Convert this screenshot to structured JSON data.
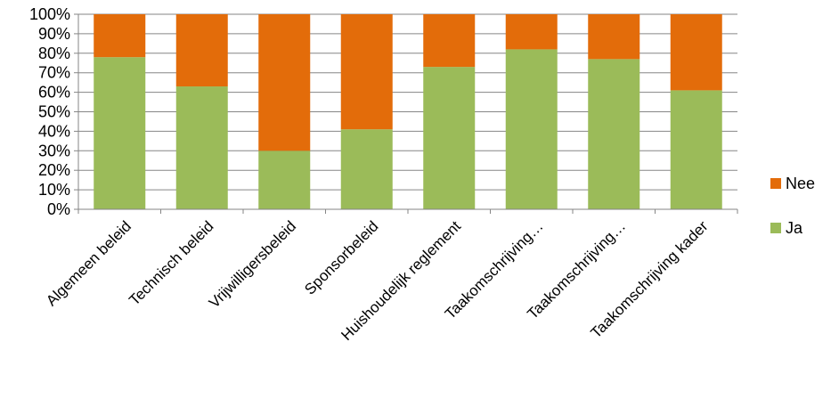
{
  "chart_data": {
    "type": "bar",
    "stacked": true,
    "percent": true,
    "categories": [
      "Algemeen beleid",
      "Technisch beleid",
      "Vrijwilligersbeleid",
      "Sponsorbeleid",
      "Huishoudelijk reglement",
      "Taakomschrijving…",
      "Taakomschrijving…",
      "Taakomschrijving kader"
    ],
    "series": [
      {
        "name": "Ja",
        "color": "#9BBB59",
        "values": [
          78,
          63,
          30,
          41,
          73,
          82,
          77,
          61
        ]
      },
      {
        "name": "Nee",
        "color": "#E36C0A",
        "values": [
          22,
          37,
          70,
          59,
          27,
          18,
          23,
          39
        ]
      }
    ],
    "yticks": [
      "0%",
      "10%",
      "20%",
      "30%",
      "40%",
      "50%",
      "60%",
      "70%",
      "80%",
      "90%",
      "100%"
    ],
    "ylim": [
      0,
      100
    ],
    "grid": true,
    "legend": {
      "position": "right",
      "order": [
        "Nee",
        "Ja"
      ]
    },
    "title": "",
    "xlabel": "",
    "ylabel": ""
  }
}
